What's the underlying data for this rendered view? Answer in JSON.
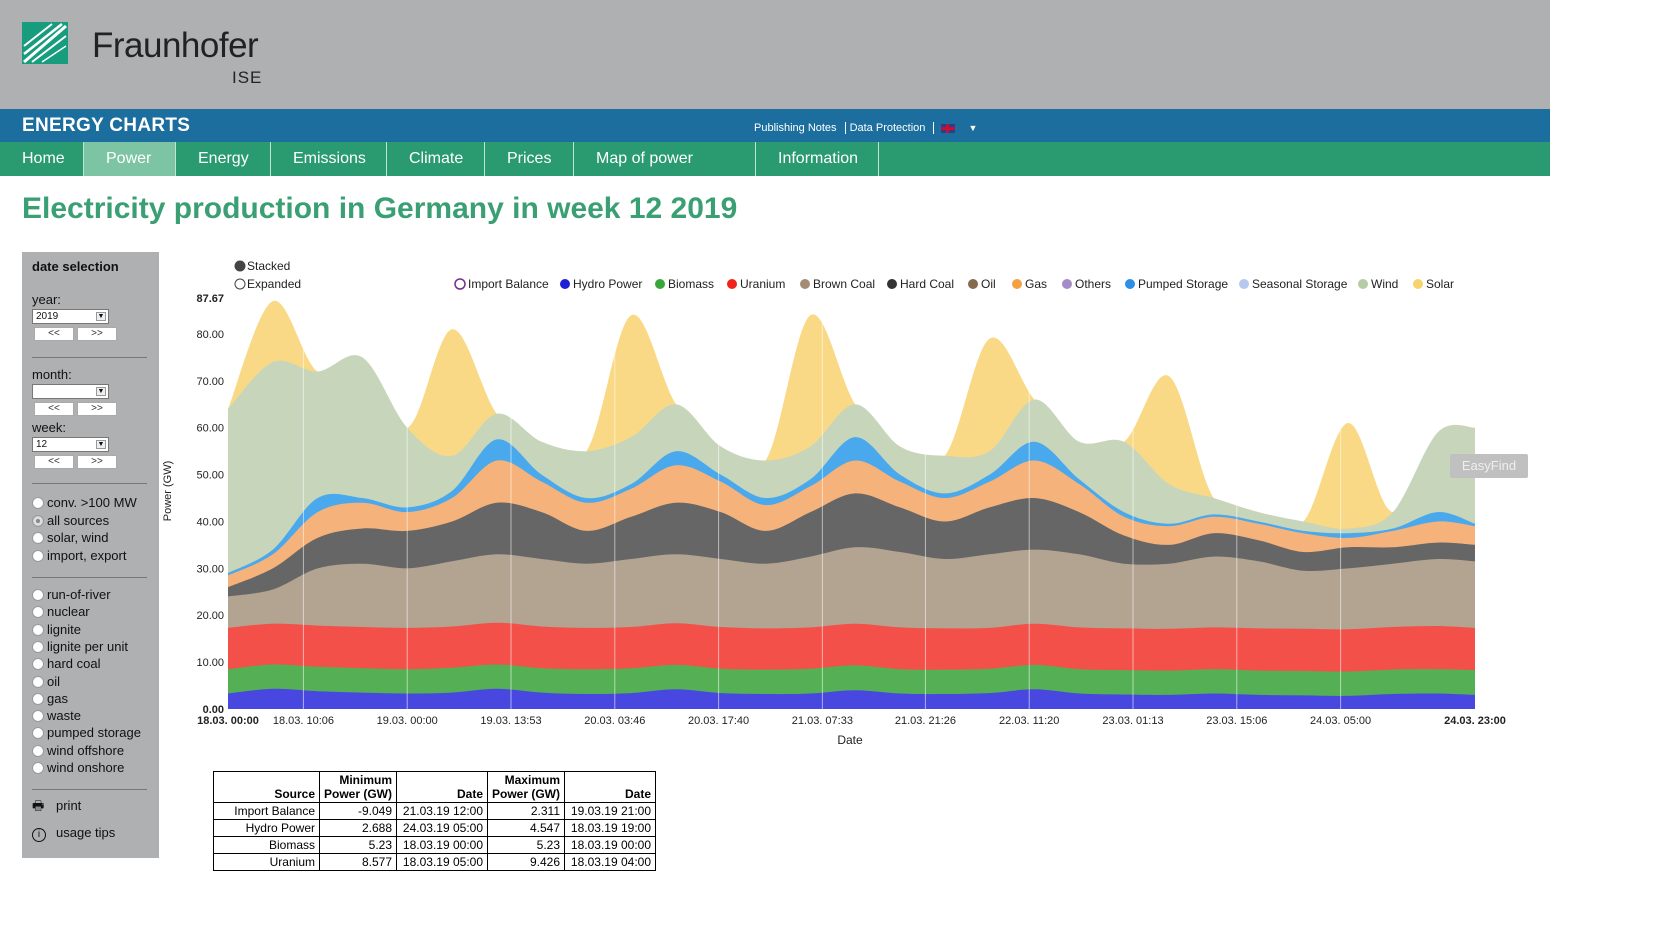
{
  "header": {
    "logo_text": "Fraunhofer",
    "logo_sub": "ISE"
  },
  "site": {
    "title": "ENERGY CHARTS",
    "links": [
      "Publishing Notes",
      "Data Protection"
    ],
    "language_flag": "uk-flag-icon"
  },
  "nav": {
    "items": [
      "Home",
      "Power",
      "Energy",
      "Emissions",
      "Climate",
      "Prices",
      "Map of power plants",
      "Information"
    ],
    "active": "Power"
  },
  "page_title": "Electricity production in Germany in week 12 2019",
  "sidebar": {
    "heading": "date selection",
    "year_label": "year:",
    "year_value": "2019",
    "month_label": "month:",
    "month_value": "",
    "week_label": "week:",
    "week_value": "12",
    "prev": "<<",
    "next": ">>",
    "source_options": [
      "conv. >100 MW",
      "all sources",
      "solar, wind",
      "import, export"
    ],
    "selected_source": "all sources",
    "type_options": [
      "run-of-river",
      "nuclear",
      "lignite",
      "lignite per unit",
      "hard coal",
      "oil",
      "gas",
      "waste",
      "pumped storage",
      "wind offshore",
      "wind onshore"
    ],
    "print_label": "print",
    "tips_label": "usage tips"
  },
  "overlay": {
    "easyfind": "EasyFind"
  },
  "colors": {
    "header_gray": "#afb0b2",
    "blue_bar": "#1c6e9e",
    "nav_green": "#2a9a70",
    "nav_active": "#7dc4a4",
    "title_green": "#3a9f73"
  },
  "chart_data": {
    "type": "area",
    "stacked": true,
    "mode_options": [
      "Stacked",
      "Expanded"
    ],
    "selected_mode": "Stacked",
    "ylabel": "Power (GW)",
    "xlabel": "Date",
    "ylim": [
      0,
      87.67
    ],
    "y_ticks": [
      "0.00",
      "10.00",
      "20.00",
      "30.00",
      "40.00",
      "50.00",
      "60.00",
      "70.00",
      "80.00",
      "87.67"
    ],
    "x_ticks": [
      "18.03. 00:00",
      "18.03. 10:06",
      "19.03. 00:00",
      "19.03. 13:53",
      "20.03. 03:46",
      "20.03. 17:40",
      "21.03. 07:33",
      "21.03. 21:26",
      "22.03. 11:20",
      "23.03. 01:13",
      "23.03. 15:06",
      "24.03. 05:00",
      "24.03. 23:00"
    ],
    "x_hours": [
      0,
      10.1,
      24,
      37.9,
      51.8,
      65.7,
      79.6,
      93.4,
      107.3,
      121.2,
      135.1,
      149,
      167
    ],
    "legend": [
      "Import Balance",
      "Hydro Power",
      "Biomass",
      "Uranium",
      "Brown Coal",
      "Hard Coal",
      "Oil",
      "Gas",
      "Others",
      "Pumped Storage",
      "Seasonal Storage",
      "Wind",
      "Solar"
    ],
    "legend_colors": [
      "#ffffff",
      "#1f1fd6",
      "#3aa53a",
      "#f0231c",
      "#a38b76",
      "#333333",
      "#866a4d",
      "#f5a042",
      "#a58bc7",
      "#2d8fe6",
      "#b4c8f0",
      "#b5cba6",
      "#f7d46b"
    ],
    "stack_order": [
      "Hydro Power",
      "Biomass",
      "Uranium",
      "Brown Coal",
      "Hard Coal",
      "Gas",
      "Pumped Storage",
      "Wind",
      "Solar"
    ],
    "stack_colors": [
      "#4848e0",
      "#55b055",
      "#f3504a",
      "#b3a391",
      "#666666",
      "#f5b27a",
      "#4aa8ec",
      "#c7d6bb",
      "#f9d985"
    ],
    "x": [
      0,
      6,
      12,
      18,
      24,
      30,
      36,
      42,
      48,
      54,
      60,
      66,
      72,
      78,
      84,
      90,
      96,
      102,
      108,
      114,
      120,
      126,
      132,
      138,
      144,
      150,
      156,
      162,
      167
    ],
    "cumulative": {
      "Hydro Power": [
        3.3,
        4.3,
        3.8,
        3.5,
        3.3,
        3.5,
        4.3,
        3.5,
        3.2,
        3.4,
        4.2,
        3.4,
        3.2,
        3.3,
        4.0,
        3.3,
        3.2,
        3.4,
        4.2,
        3.3,
        3.1,
        3.0,
        3.3,
        3.0,
        2.9,
        2.8,
        3.2,
        3.3,
        3.0
      ],
      "Biomass": [
        8.5,
        9.5,
        9.0,
        8.7,
        8.5,
        8.8,
        9.5,
        8.7,
        8.5,
        8.7,
        9.4,
        8.6,
        8.4,
        8.6,
        9.3,
        8.5,
        8.4,
        8.6,
        9.4,
        8.5,
        8.3,
        8.2,
        8.5,
        8.2,
        8.1,
        8.0,
        8.4,
        8.5,
        8.3
      ],
      "Uranium": [
        17.3,
        18.2,
        17.8,
        17.5,
        17.3,
        17.6,
        18.4,
        17.6,
        17.3,
        17.5,
        18.3,
        17.5,
        17.2,
        17.4,
        18.2,
        17.4,
        17.2,
        17.3,
        18.2,
        17.4,
        17.2,
        17.1,
        17.4,
        17.2,
        17.1,
        17.0,
        17.5,
        17.7,
        17.3
      ],
      "Brown Coal": [
        24.0,
        25.5,
        30.0,
        31.0,
        30.0,
        31.5,
        33.0,
        32.0,
        31.0,
        32.0,
        33.0,
        32.0,
        31.0,
        32.5,
        34.5,
        33.5,
        32.0,
        33.0,
        34.0,
        33.0,
        31.0,
        31.0,
        32.5,
        31.5,
        29.5,
        30.0,
        31.0,
        32.0,
        31.5
      ],
      "Hard Coal": [
        26.0,
        30.0,
        36.5,
        38.5,
        38.0,
        40.0,
        44.0,
        42.0,
        38.0,
        41.0,
        44.0,
        42.0,
        38.0,
        42.0,
        46.0,
        43.0,
        40.0,
        43.0,
        45.0,
        42.0,
        37.0,
        35.0,
        37.5,
        36.0,
        33.5,
        34.5,
        34.5,
        35.5,
        35.0
      ],
      "Gas": [
        28.5,
        33.0,
        42.0,
        44.0,
        42.0,
        45.0,
        53.0,
        48.5,
        44.0,
        47.0,
        52.0,
        48.5,
        43.5,
        47.5,
        53.0,
        48.5,
        45.0,
        48.5,
        53.0,
        48.0,
        41.0,
        39.0,
        41.0,
        39.5,
        37.5,
        36.5,
        38.0,
        40.0,
        39.0
      ],
      "Pumped Storage": [
        29.0,
        34.0,
        45.0,
        45.0,
        43.0,
        46.5,
        57.5,
        50.0,
        45.0,
        48.0,
        55.0,
        50.0,
        45.0,
        49.0,
        58.0,
        50.0,
        46.0,
        50.0,
        57.0,
        49.0,
        42.0,
        39.5,
        41.5,
        40.0,
        38.0,
        37.5,
        38.5,
        42.0,
        39.5
      ],
      "Wind": [
        64.0,
        74.0,
        72.0,
        75.0,
        60.0,
        54.0,
        63.0,
        57.0,
        55.0,
        58.0,
        65.0,
        56.0,
        53.0,
        56.0,
        65.0,
        56.0,
        54.0,
        55.0,
        66.0,
        57.0,
        57.0,
        48.0,
        45.0,
        42.0,
        40.0,
        38.5,
        42.0,
        59.0,
        60.0
      ],
      "Solar": [
        64.0,
        87.0,
        72.0,
        75.0,
        60.0,
        81.0,
        63.0,
        57.0,
        55.0,
        84.0,
        65.0,
        56.0,
        53.0,
        84.0,
        65.0,
        56.0,
        54.0,
        79.0,
        66.0,
        57.0,
        57.0,
        71.0,
        45.0,
        42.0,
        40.0,
        61.0,
        42.0,
        59.0,
        60.0
      ]
    }
  },
  "table": {
    "headers": [
      "Source",
      "Minimum Power (GW)",
      "Date",
      "Maximum Power (GW)",
      "Date"
    ],
    "rows": [
      [
        "Import Balance",
        "-9.049",
        "21.03.19 12:00",
        "2.311",
        "19.03.19 21:00"
      ],
      [
        "Hydro Power",
        "2.688",
        "24.03.19 05:00",
        "4.547",
        "18.03.19 19:00"
      ],
      [
        "Biomass",
        "5.23",
        "18.03.19 00:00",
        "5.23",
        "18.03.19 00:00"
      ],
      [
        "Uranium",
        "8.577",
        "18.03.19 05:00",
        "9.426",
        "18.03.19 04:00"
      ]
    ]
  }
}
